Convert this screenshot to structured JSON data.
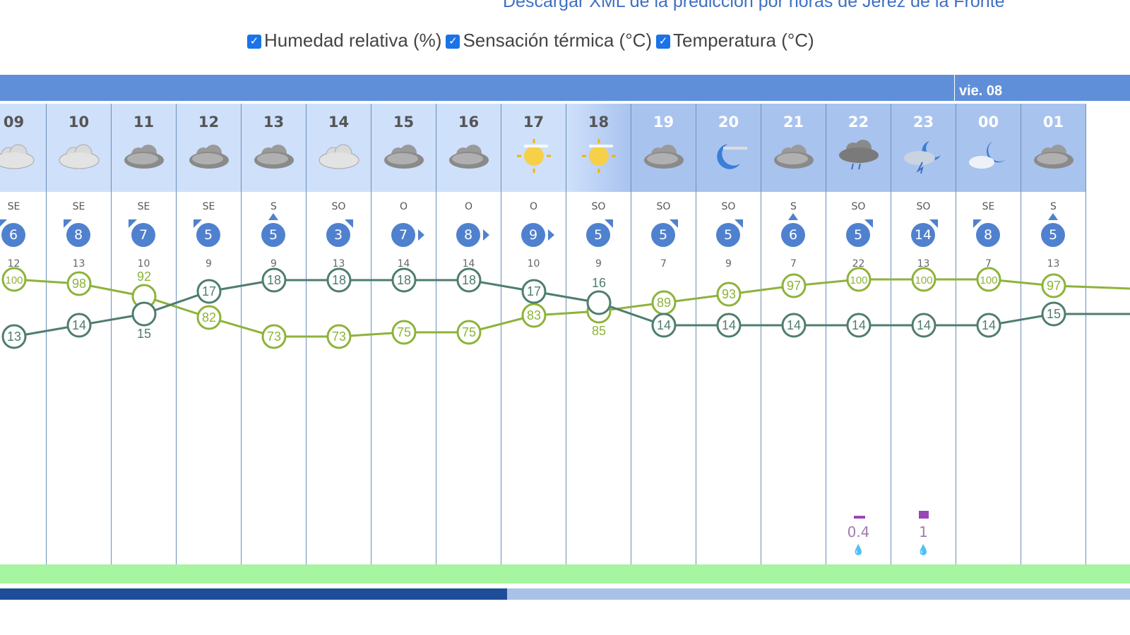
{
  "download_link": "Descargar XML de la predicción por horas de Jerez de la Fronte",
  "legend": [
    {
      "label": "Humedad relativa (%)",
      "checked": true,
      "color": "#8db33a"
    },
    {
      "label": "Sensación térmica (°C)",
      "checked": true,
      "color": "#4e7d70"
    },
    {
      "label": "Temperatura (°C)",
      "checked": true,
      "color": "#4e7d70"
    }
  ],
  "day_label": "vie. 08",
  "scroll_position_percent": 46,
  "chart_data": {
    "type": "line",
    "categories": [
      "09",
      "10",
      "11",
      "12",
      "13",
      "14",
      "15",
      "16",
      "17",
      "18",
      "19",
      "20",
      "21",
      "22",
      "23",
      "00",
      "01"
    ],
    "series": [
      {
        "name": "Humedad relativa (%)",
        "values": [
          100,
          98,
          92,
          82,
          73,
          73,
          75,
          75,
          83,
          85,
          89,
          93,
          97,
          100,
          100,
          100,
          97
        ]
      },
      {
        "name": "Temperatura (°C)",
        "values": [
          13,
          14,
          15,
          17,
          18,
          18,
          18,
          18,
          17,
          16,
          14,
          14,
          14,
          14,
          14,
          14,
          15
        ]
      }
    ]
  },
  "hours": [
    {
      "hour": "09",
      "icon": "cloud-light-icon",
      "dir": "SE",
      "wind": "6",
      "gust": "12",
      "night": false
    },
    {
      "hour": "10",
      "icon": "cloud-light-icon",
      "dir": "SE",
      "wind": "8",
      "gust": "13",
      "night": false
    },
    {
      "hour": "11",
      "icon": "cloud-icon",
      "dir": "SE",
      "wind": "7",
      "gust": "10",
      "night": false
    },
    {
      "hour": "12",
      "icon": "cloud-icon",
      "dir": "SE",
      "wind": "5",
      "gust": "9",
      "night": false
    },
    {
      "hour": "13",
      "icon": "cloud-icon",
      "dir": "S",
      "wind": "5",
      "gust": "9",
      "night": false
    },
    {
      "hour": "14",
      "icon": "cloud-light-icon",
      "dir": "SO",
      "wind": "3",
      "gust": "13",
      "night": false
    },
    {
      "hour": "15",
      "icon": "cloud-icon",
      "dir": "O",
      "wind": "7",
      "gust": "14",
      "night": false
    },
    {
      "hour": "16",
      "icon": "cloud-icon",
      "dir": "O",
      "wind": "8",
      "gust": "14",
      "night": false
    },
    {
      "hour": "17",
      "icon": "sun-haze-icon",
      "dir": "O",
      "wind": "9",
      "gust": "10",
      "night": false
    },
    {
      "hour": "18",
      "icon": "sun-haze-icon",
      "dir": "SO",
      "wind": "5",
      "gust": "9",
      "night": "dusk"
    },
    {
      "hour": "19",
      "icon": "cloud-icon",
      "dir": "SO",
      "wind": "5",
      "gust": "7",
      "night": true
    },
    {
      "hour": "20",
      "icon": "moon-haze-icon",
      "dir": "SO",
      "wind": "5",
      "gust": "9",
      "night": true
    },
    {
      "hour": "21",
      "icon": "cloud-icon",
      "dir": "S",
      "wind": "6",
      "gust": "7",
      "night": true
    },
    {
      "hour": "22",
      "icon": "cloud-rain-icon",
      "dir": "SO",
      "wind": "5",
      "gust": "22",
      "night": true,
      "rain": "0.4",
      "rain_level": 0.25
    },
    {
      "hour": "23",
      "icon": "moon-storm-icon",
      "dir": "SO",
      "wind": "14",
      "gust": "13",
      "night": true,
      "rain": "1",
      "rain_level": 0.6
    },
    {
      "hour": "00",
      "icon": "moon-cloud-icon",
      "dir": "SE",
      "wind": "8",
      "gust": "7",
      "night": true
    },
    {
      "hour": "01",
      "icon": "cloud-icon",
      "dir": "S",
      "wind": "5",
      "gust": "13",
      "night": true
    }
  ]
}
